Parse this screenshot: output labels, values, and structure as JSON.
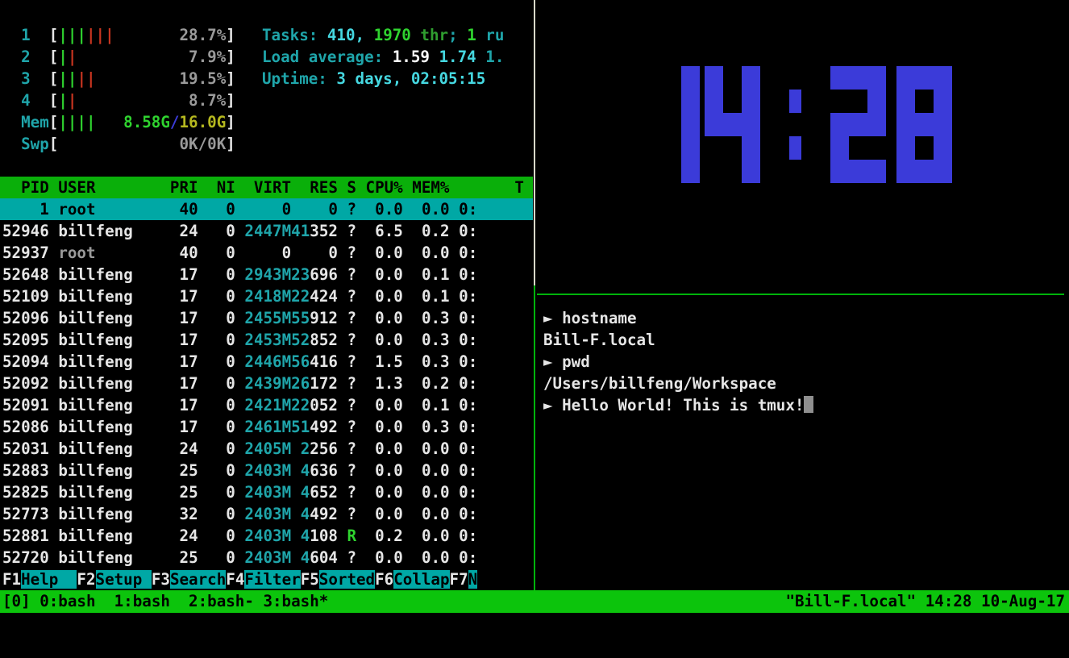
{
  "colors": {
    "background": "#000000",
    "accent_green": "#0cc40c",
    "header_green": "#0aaf0a",
    "selection_cyan": "#00a8a5",
    "clock_blue": "#3b3bd9",
    "bar_green": "#2fd32f",
    "bar_red": "#c93520",
    "mem_yellow": "#b5b81f",
    "border_green": "#00b30b",
    "border_gray": "#d8d8c8"
  },
  "htop": {
    "meters": [
      {
        "label": "1",
        "bars": [
          [
            "|||",
            "g"
          ],
          [
            "|||",
            "rd"
          ]
        ],
        "value": [
          [
            "28.7%",
            "gy"
          ]
        ]
      },
      {
        "label": "2",
        "bars": [
          [
            "|",
            "g"
          ],
          [
            "|",
            "rd"
          ]
        ],
        "value": [
          [
            "7.9%",
            "gy"
          ]
        ]
      },
      {
        "label": "3",
        "bars": [
          [
            "||",
            "g"
          ],
          [
            "||",
            "rd"
          ]
        ],
        "value": [
          [
            "19.5%",
            "gy"
          ]
        ]
      },
      {
        "label": "4",
        "bars": [
          [
            "|",
            "g"
          ],
          [
            "|",
            "rd"
          ]
        ],
        "value": [
          [
            "8.7%",
            "gy"
          ]
        ]
      },
      {
        "label": "Mem",
        "bars": [
          [
            "||||",
            "g"
          ]
        ],
        "value": [
          [
            "8.58G",
            "g"
          ],
          [
            "/",
            "bl"
          ],
          [
            "16.0G",
            "yl"
          ]
        ]
      },
      {
        "label": "Swp",
        "bars": [],
        "value": [
          [
            "0K/0K",
            "gy"
          ]
        ]
      }
    ],
    "tasks_line": [
      [
        "Tasks: ",
        "c"
      ],
      [
        "410, ",
        "cb"
      ],
      [
        "1970",
        "g"
      ],
      [
        " thr",
        "gd"
      ],
      [
        "; ",
        "c"
      ],
      [
        "1",
        "g"
      ],
      [
        " ru",
        "c"
      ]
    ],
    "load_line": [
      [
        "Load average: ",
        "c"
      ],
      [
        "1.59 ",
        "wb"
      ],
      [
        "1.74 ",
        "cb"
      ],
      [
        "1.",
        "c"
      ]
    ],
    "uptime_line": [
      [
        "Uptime: ",
        "c"
      ],
      [
        "3 days, 02:05:15",
        "cb"
      ]
    ],
    "table_header": "  PID USER        PRI  NI  VIRT  RES S CPU% MEM%       T",
    "rows": [
      {
        "pid": "    1",
        "user": "root    ",
        "dim": false,
        "sel": true,
        "pri": "40",
        "ni": "0",
        "virt": "    0",
        "resHi": "",
        "resLo": "    0",
        "s": "?",
        "cpu": "0.0",
        "mem": "0.0",
        "time": "0:"
      },
      {
        "pid": "52946",
        "user": "billfeng",
        "dim": false,
        "sel": false,
        "pri": "24",
        "ni": "0",
        "virt": "2447M",
        "resHi": "41",
        "resLo": "352",
        "s": "?",
        "cpu": "6.5",
        "mem": "0.2",
        "time": "0:"
      },
      {
        "pid": "52937",
        "user": "root    ",
        "dim": true,
        "sel": false,
        "pri": "40",
        "ni": "0",
        "virt": "    0",
        "resHi": "",
        "resLo": "    0",
        "s": "?",
        "cpu": "0.0",
        "mem": "0.0",
        "time": "0:"
      },
      {
        "pid": "52648",
        "user": "billfeng",
        "dim": false,
        "sel": false,
        "pri": "17",
        "ni": "0",
        "virt": "2943M",
        "resHi": "23",
        "resLo": "696",
        "s": "?",
        "cpu": "0.0",
        "mem": "0.1",
        "time": "0:"
      },
      {
        "pid": "52109",
        "user": "billfeng",
        "dim": false,
        "sel": false,
        "pri": "17",
        "ni": "0",
        "virt": "2418M",
        "resHi": "22",
        "resLo": "424",
        "s": "?",
        "cpu": "0.0",
        "mem": "0.1",
        "time": "0:"
      },
      {
        "pid": "52096",
        "user": "billfeng",
        "dim": false,
        "sel": false,
        "pri": "17",
        "ni": "0",
        "virt": "2455M",
        "resHi": "55",
        "resLo": "912",
        "s": "?",
        "cpu": "0.0",
        "mem": "0.3",
        "time": "0:"
      },
      {
        "pid": "52095",
        "user": "billfeng",
        "dim": false,
        "sel": false,
        "pri": "17",
        "ni": "0",
        "virt": "2453M",
        "resHi": "52",
        "resLo": "852",
        "s": "?",
        "cpu": "0.0",
        "mem": "0.3",
        "time": "0:"
      },
      {
        "pid": "52094",
        "user": "billfeng",
        "dim": false,
        "sel": false,
        "pri": "17",
        "ni": "0",
        "virt": "2446M",
        "resHi": "56",
        "resLo": "416",
        "s": "?",
        "cpu": "1.5",
        "mem": "0.3",
        "time": "0:"
      },
      {
        "pid": "52092",
        "user": "billfeng",
        "dim": false,
        "sel": false,
        "pri": "17",
        "ni": "0",
        "virt": "2439M",
        "resHi": "26",
        "resLo": "172",
        "s": "?",
        "cpu": "1.3",
        "mem": "0.2",
        "time": "0:"
      },
      {
        "pid": "52091",
        "user": "billfeng",
        "dim": false,
        "sel": false,
        "pri": "17",
        "ni": "0",
        "virt": "2421M",
        "resHi": "22",
        "resLo": "052",
        "s": "?",
        "cpu": "0.0",
        "mem": "0.1",
        "time": "0:"
      },
      {
        "pid": "52086",
        "user": "billfeng",
        "dim": false,
        "sel": false,
        "pri": "17",
        "ni": "0",
        "virt": "2461M",
        "resHi": "51",
        "resLo": "492",
        "s": "?",
        "cpu": "0.0",
        "mem": "0.3",
        "time": "0:"
      },
      {
        "pid": "52031",
        "user": "billfeng",
        "dim": false,
        "sel": false,
        "pri": "24",
        "ni": "0",
        "virt": "2405M",
        "resHi": " 2",
        "resLo": "256",
        "s": "?",
        "cpu": "0.0",
        "mem": "0.0",
        "time": "0:"
      },
      {
        "pid": "52883",
        "user": "billfeng",
        "dim": false,
        "sel": false,
        "pri": "25",
        "ni": "0",
        "virt": "2403M",
        "resHi": " 4",
        "resLo": "636",
        "s": "?",
        "cpu": "0.0",
        "mem": "0.0",
        "time": "0:"
      },
      {
        "pid": "52825",
        "user": "billfeng",
        "dim": false,
        "sel": false,
        "pri": "25",
        "ni": "0",
        "virt": "2403M",
        "resHi": " 4",
        "resLo": "652",
        "s": "?",
        "cpu": "0.0",
        "mem": "0.0",
        "time": "0:"
      },
      {
        "pid": "52773",
        "user": "billfeng",
        "dim": false,
        "sel": false,
        "pri": "32",
        "ni": "0",
        "virt": "2403M",
        "resHi": " 4",
        "resLo": "492",
        "s": "?",
        "cpu": "0.0",
        "mem": "0.0",
        "time": "0:"
      },
      {
        "pid": "52881",
        "user": "billfeng",
        "dim": false,
        "sel": false,
        "pri": "24",
        "ni": "0",
        "virt": "2403M",
        "resHi": " 4",
        "resLo": "108",
        "s": "R",
        "cpu": "0.2",
        "mem": "0.0",
        "time": "0:"
      },
      {
        "pid": "52720",
        "user": "billfeng",
        "dim": false,
        "sel": false,
        "pri": "25",
        "ni": "0",
        "virt": "2403M",
        "resHi": " 4",
        "resLo": "604",
        "s": "?",
        "cpu": "0.0",
        "mem": "0.0",
        "time": "0:"
      }
    ],
    "fkeys": [
      {
        "key": "F1",
        "label": "Help  "
      },
      {
        "key": "F2",
        "label": "Setup "
      },
      {
        "key": "F3",
        "label": "Search"
      },
      {
        "key": "F4",
        "label": "Filter"
      },
      {
        "key": "F5",
        "label": "Sorted"
      },
      {
        "key": "F6",
        "label": "Collap"
      },
      {
        "key": "F7",
        "label": "N"
      }
    ]
  },
  "clock": {
    "time": "14:28",
    "glyphs": [
      {
        "ch": "1",
        "kind": "d1",
        "ml": 0,
        "rows": [
          [
            1
          ],
          [
            1
          ],
          [
            1
          ],
          [
            1
          ],
          [
            1
          ]
        ]
      },
      {
        "ch": "4",
        "kind": "d3",
        "ml": 6,
        "rows": [
          [
            1,
            0,
            1
          ],
          [
            1,
            0,
            1
          ],
          [
            1,
            1,
            1
          ],
          [
            0,
            0,
            1
          ],
          [
            0,
            0,
            1
          ]
        ]
      },
      {
        "ch": ":",
        "kind": "dc",
        "ml": 36,
        "rows": [
          [
            0
          ],
          [
            1
          ],
          [
            0
          ],
          [
            1
          ],
          [
            0
          ]
        ]
      },
      {
        "ch": "2",
        "kind": "d3",
        "ml": 36,
        "rows": [
          [
            1,
            1,
            1
          ],
          [
            0,
            0,
            1
          ],
          [
            1,
            1,
            1
          ],
          [
            1,
            0,
            0
          ],
          [
            1,
            1,
            1
          ]
        ]
      },
      {
        "ch": "8",
        "kind": "d3",
        "ml": 13,
        "rows": [
          [
            1,
            1,
            1
          ],
          [
            1,
            0,
            1
          ],
          [
            1,
            1,
            1
          ],
          [
            1,
            0,
            1
          ],
          [
            1,
            1,
            1
          ]
        ]
      }
    ]
  },
  "shell": {
    "prompt_symbol": "►",
    "lines": [
      {
        "prompt": true,
        "text": "hostname",
        "cursor": false
      },
      {
        "prompt": false,
        "text": "Bill-F.local",
        "cursor": false
      },
      {
        "prompt": true,
        "text": "pwd",
        "cursor": false
      },
      {
        "prompt": false,
        "text": "/Users/billfeng/Workspace",
        "cursor": false
      },
      {
        "prompt": true,
        "text": "Hello World! This is tmux!",
        "cursor": true
      }
    ]
  },
  "tmux": {
    "window_list": "[0] 0:bash  1:bash  2:bash- 3:bash*",
    "status_right": "\"Bill-F.local\" 14:28 10-Aug-17"
  }
}
